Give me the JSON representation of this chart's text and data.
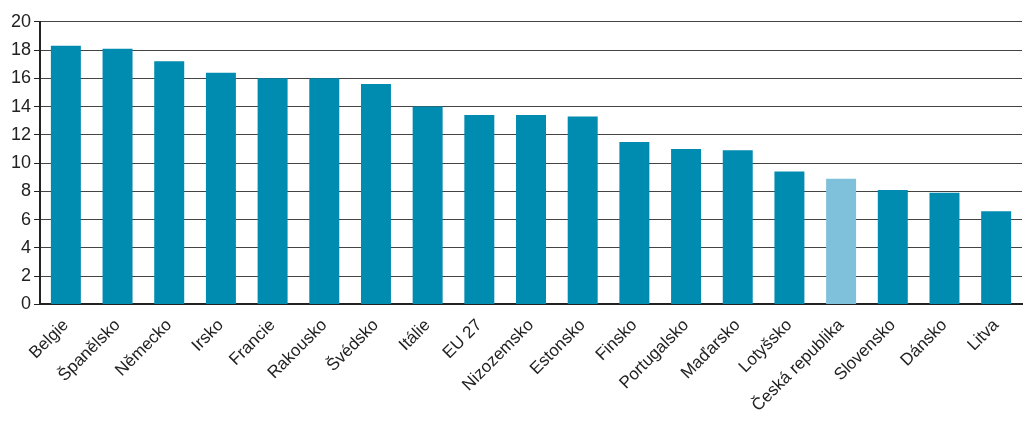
{
  "chart_data": {
    "type": "bar",
    "categories": [
      "Belgie",
      "Španělsko",
      "Německo",
      "Irsko",
      "Francie",
      "Rakousko",
      "Švédsko",
      "Itálie",
      "EU 27",
      "Nizozemsko",
      "Estonsko",
      "Finsko",
      "Portugalsko",
      "Maďarsko",
      "Lotyšsko",
      "Česká republika",
      "Slovensko",
      "Dánsko",
      "Litva"
    ],
    "values": [
      18.3,
      18.1,
      17.2,
      16.4,
      16.0,
      16.0,
      15.6,
      14.0,
      13.4,
      13.4,
      13.3,
      11.5,
      11.0,
      10.9,
      9.4,
      8.9,
      8.1,
      7.9,
      6.6
    ],
    "colors": [
      "#008bb0",
      "#008bb0",
      "#008bb0",
      "#008bb0",
      "#008bb0",
      "#008bb0",
      "#008bb0",
      "#008bb0",
      "#008bb0",
      "#008bb0",
      "#008bb0",
      "#008bb0",
      "#008bb0",
      "#008bb0",
      "#008bb0",
      "#7fc0da",
      "#008bb0",
      "#008bb0",
      "#008bb0"
    ],
    "ylim": [
      0,
      20
    ],
    "yticks": [
      0,
      2,
      4,
      6,
      8,
      10,
      12,
      14,
      16,
      18,
      20
    ],
    "grid": "y",
    "legend": false
  }
}
